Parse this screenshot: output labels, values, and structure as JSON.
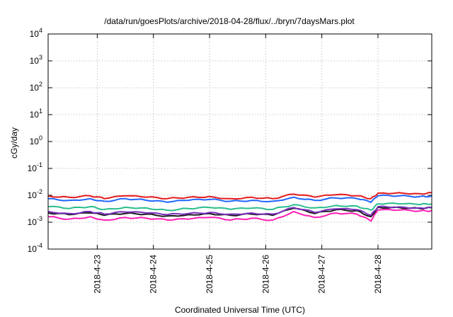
{
  "chart_data": {
    "type": "line",
    "title": "/data/run/goesPlots/archive/2018-04-28/flux/../bryn/7daysMars.plot",
    "xlabel": "Coordinated Universal Time (UTC)",
    "ylabel": "cGy/day",
    "yscale": "log",
    "ylim": [
      0.0001,
      10000
    ],
    "xlim": [
      "2018-04-22 03:00",
      "2018-04-28 23:00"
    ],
    "grid": true,
    "legend": "none",
    "y_tick_labels": [
      {
        "base": "10",
        "exp": "-4"
      },
      {
        "base": "10",
        "exp": "-3"
      },
      {
        "base": "10",
        "exp": "-2"
      },
      {
        "base": "10",
        "exp": "-1"
      },
      {
        "base": "10",
        "exp": "0"
      },
      {
        "base": "10",
        "exp": "1"
      },
      {
        "base": "10",
        "exp": "2"
      },
      {
        "base": "10",
        "exp": "3"
      },
      {
        "base": "10",
        "exp": "4"
      }
    ],
    "x_tick_labels": [
      "2018-4-23",
      "2018-4-24",
      "2018-4-25",
      "2018-4-26",
      "2018-4-27",
      "2018-4-28"
    ],
    "x": [
      "2018-04-22 03:00",
      "2018-04-22 12:00",
      "2018-04-22 21:00",
      "2018-04-23 03:00",
      "2018-04-23 12:00",
      "2018-04-23 21:00",
      "2018-04-24 06:00",
      "2018-04-24 15:00",
      "2018-04-25 00:00",
      "2018-04-25 09:00",
      "2018-04-25 18:00",
      "2018-04-26 03:00",
      "2018-04-26 12:00",
      "2018-04-26 21:00",
      "2018-04-27 06:00",
      "2018-04-27 15:00",
      "2018-04-27 21:00",
      "2018-04-28 00:00",
      "2018-04-28 09:00",
      "2018-04-28 18:00",
      "2018-04-28 23:00"
    ],
    "series": [
      {
        "color": "#e41a1c",
        "values": [
          0.0095,
          0.0085,
          0.0095,
          0.0075,
          0.0095,
          0.0085,
          0.0075,
          0.0085,
          0.009,
          0.0075,
          0.0085,
          0.0075,
          0.011,
          0.0085,
          0.0105,
          0.0095,
          0.0075,
          0.012,
          0.0125,
          0.0115,
          0.0125
        ]
      },
      {
        "color": "#2166ff",
        "values": [
          0.0075,
          0.0065,
          0.0075,
          0.006,
          0.0075,
          0.0065,
          0.0055,
          0.0065,
          0.007,
          0.006,
          0.0065,
          0.006,
          0.0085,
          0.0065,
          0.008,
          0.0075,
          0.0055,
          0.0095,
          0.0095,
          0.009,
          0.0095
        ]
      },
      {
        "color": "#2bbd8e",
        "values": [
          0.0038,
          0.0032,
          0.0038,
          0.003,
          0.0036,
          0.0034,
          0.0028,
          0.0032,
          0.0035,
          0.003,
          0.0033,
          0.003,
          0.0045,
          0.0034,
          0.0042,
          0.004,
          0.0028,
          0.0048,
          0.0048,
          0.0045,
          0.0047
        ]
      },
      {
        "color": "#1a1a1a",
        "values": [
          0.0022,
          0.0019,
          0.0022,
          0.0018,
          0.0021,
          0.002,
          0.0017,
          0.0019,
          0.0021,
          0.0018,
          0.002,
          0.0018,
          0.0033,
          0.0021,
          0.0029,
          0.0027,
          0.0016,
          0.0036,
          0.0035,
          0.0032,
          0.0034
        ]
      },
      {
        "color": "#7b2fbf",
        "values": [
          0.0025,
          0.0021,
          0.0025,
          0.002,
          0.0024,
          0.0022,
          0.0019,
          0.0021,
          0.0023,
          0.002,
          0.0022,
          0.002,
          0.0035,
          0.0023,
          0.0031,
          0.0029,
          0.0018,
          0.0038,
          0.0037,
          0.0034,
          0.0036
        ]
      },
      {
        "color": "#ff1fb4",
        "values": [
          0.0016,
          0.0013,
          0.0016,
          0.0012,
          0.0015,
          0.0014,
          0.0012,
          0.0013,
          0.0015,
          0.0012,
          0.0014,
          0.0012,
          0.0025,
          0.0015,
          0.0022,
          0.002,
          0.0011,
          0.0028,
          0.0028,
          0.0026,
          0.0027
        ]
      }
    ]
  }
}
